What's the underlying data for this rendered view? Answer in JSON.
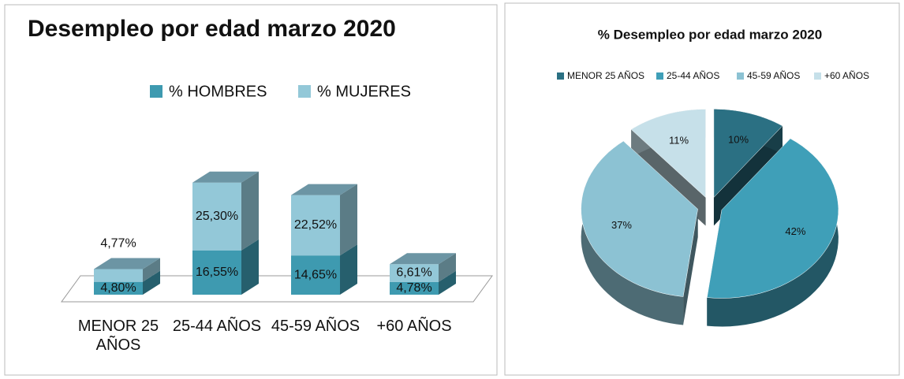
{
  "chart_data": [
    {
      "type": "bar",
      "stacked": true,
      "title": "Desempleo por edad marzo 2020",
      "categories": [
        "MENOR 25 AÑOS",
        "25-44 AÑOS",
        "45-59 AÑOS",
        "+60 AÑOS"
      ],
      "series": [
        {
          "name": "% HOMBRES",
          "color": "#3e9ab0",
          "values": [
            4.8,
            16.55,
            14.65,
            4.78
          ],
          "value_labels": [
            "4,80%",
            "16,55%",
            "14,65%",
            "4,78%"
          ]
        },
        {
          "name": "% MUJERES",
          "color": "#93c8d8",
          "values": [
            4.77,
            25.3,
            22.52,
            6.61
          ],
          "value_labels": [
            "4,77%",
            "25,30%",
            "22,52%",
            "6,61%"
          ]
        }
      ]
    },
    {
      "type": "pie",
      "title": "% Desempleo por edad marzo 2020",
      "categories": [
        "MENOR 25 AÑOS",
        "25-44 AÑOS",
        "45-59 AÑOS",
        "+60 AÑOS"
      ],
      "values": [
        10,
        42,
        37,
        11
      ],
      "value_labels": [
        "10%",
        "42%",
        "37%",
        "11%"
      ],
      "colors": [
        "#2b7083",
        "#3f9fb8",
        "#8cc2d3",
        "#c6e0e9"
      ]
    }
  ]
}
